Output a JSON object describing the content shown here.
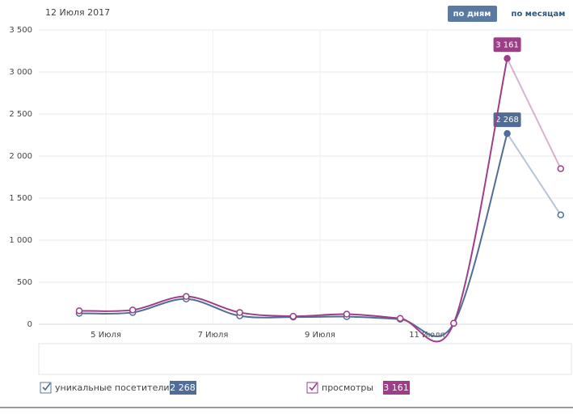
{
  "header": {
    "date": "12 Июля 2017",
    "buttons": [
      "по дням",
      "по месяцам"
    ]
  },
  "chart_data": {
    "type": "line",
    "categories": [
      null,
      null,
      null,
      null,
      null,
      null,
      null,
      null,
      null,
      null
    ],
    "x_tick_labels": [
      "5 Июля",
      "7 Июля",
      "9 Июля",
      "11 Июля"
    ],
    "ylim": [
      0,
      3500
    ],
    "yticks": [
      0,
      500,
      {
        "value": 1000,
        "label": "1 000"
      },
      {
        "value": 1500,
        "label": "1 500"
      },
      {
        "value": 2000,
        "label": "2 000"
      },
      {
        "value": 2500,
        "label": "2 500"
      },
      {
        "value": 3000,
        "label": "3 000"
      },
      {
        "value": 3500,
        "label": "3 500"
      }
    ],
    "grid": true,
    "series": [
      {
        "name": "уникальные посетители",
        "color": "#4f6d96",
        "values": [
          130,
          140,
          300,
          100,
          85,
          90,
          60,
          10,
          2268,
          1300
        ],
        "value_labels": [
          null,
          null,
          null,
          null,
          null,
          null,
          null,
          null,
          "2 268",
          null
        ]
      },
      {
        "name": "просмотры",
        "color": "#9e3e88",
        "values": [
          160,
          170,
          330,
          140,
          95,
          120,
          70,
          12,
          3161,
          1850
        ],
        "value_labels": [
          null,
          null,
          null,
          null,
          null,
          null,
          null,
          null,
          "3 161",
          null
        ]
      }
    ]
  }
}
